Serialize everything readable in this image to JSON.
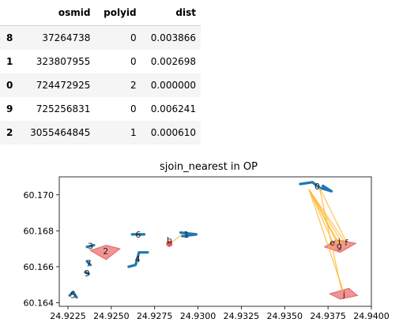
{
  "table": {
    "columns": [
      "osmid",
      "polyid",
      "dist"
    ],
    "rows": [
      {
        "index": "8",
        "osmid": "37264738",
        "polyid": "0",
        "dist": "0.003866"
      },
      {
        "index": "1",
        "osmid": "323807955",
        "polyid": "0",
        "dist": "0.002698"
      },
      {
        "index": "0",
        "osmid": "724472925",
        "polyid": "2",
        "dist": "0.000000"
      },
      {
        "index": "9",
        "osmid": "725256831",
        "polyid": "0",
        "dist": "0.006241"
      },
      {
        "index": "2",
        "osmid": "3055464845",
        "polyid": "1",
        "dist": "0.000610"
      }
    ]
  },
  "chart_data": {
    "type": "scatter",
    "title": "sjoin_nearest in OP",
    "xlim": [
      24.922,
      24.94
    ],
    "ylim": [
      60.1638,
      60.171
    ],
    "x_ticks": [
      "24.9225",
      "24.9250",
      "24.9275",
      "24.9300",
      "24.9325",
      "24.9350",
      "24.9375",
      "24.9400"
    ],
    "y_ticks": [
      "60.164",
      "60.166",
      "60.168",
      "60.170"
    ],
    "colors": {
      "line_features": "#1f77b4",
      "polygons": "#f08080",
      "polygon_edge": "#e06666",
      "point": "#d62728",
      "connector": "#ffb733"
    },
    "blue_lines": [
      {
        "label": "0",
        "coords": [
          [
            24.9359,
            60.1706
          ],
          [
            24.9366,
            60.1707
          ],
          [
            24.937,
            60.1704
          ],
          [
            24.9377,
            60.1702
          ],
          [
            24.9372,
            60.1705
          ]
        ]
      },
      {
        "label": "1",
        "coords": [
          [
            24.929,
            60.1679
          ],
          [
            24.9299,
            60.1678
          ],
          [
            24.9291,
            60.1677
          ]
        ]
      },
      {
        "label": "6",
        "coords": [
          [
            24.9262,
            60.1678
          ],
          [
            24.9269,
            60.1678
          ]
        ]
      },
      {
        "label": "4",
        "coords": [
          [
            24.926,
            60.166
          ],
          [
            24.9264,
            60.1661
          ],
          [
            24.9266,
            60.1668
          ],
          [
            24.9271,
            60.1668
          ]
        ]
      },
      {
        "label": "5",
        "coords": [
          [
            24.9226,
            60.1644
          ],
          [
            24.9228,
            60.1646
          ],
          [
            24.923,
            60.1643
          ]
        ]
      },
      {
        "label": "3",
        "coords": [
          [
            24.9236,
            60.1671
          ],
          [
            24.924,
            60.1672
          ]
        ]
      },
      {
        "label": "7",
        "coords": [
          [
            24.9236,
            60.1663
          ],
          [
            24.9238,
            60.1661
          ]
        ]
      },
      {
        "label": "9",
        "coords": [
          [
            24.9235,
            60.1657
          ],
          [
            24.9237,
            60.1656
          ]
        ]
      }
    ],
    "polygons": [
      {
        "label": "2",
        "coords": [
          [
            24.9238,
            60.1669
          ],
          [
            24.9247,
            60.1672
          ],
          [
            24.9255,
            60.167
          ],
          [
            24.9247,
            60.1664
          ]
        ]
      },
      {
        "label": "g",
        "coords": [
          [
            24.9373,
            60.1671
          ],
          [
            24.938,
            60.1675
          ],
          [
            24.9391,
            60.1673
          ],
          [
            24.9382,
            60.1668
          ]
        ]
      },
      {
        "label": "j",
        "coords": [
          [
            24.9376,
            60.1645
          ],
          [
            24.9387,
            60.1648
          ],
          [
            24.9392,
            60.1644
          ],
          [
            24.9382,
            60.1642
          ]
        ]
      }
    ],
    "point": {
      "label": "b",
      "x": 24.92835,
      "y": 60.16728
    },
    "point_labels": [
      {
        "text": "e",
        "x": 24.93775,
        "y": 60.16735
      },
      {
        "text": "i",
        "x": 24.93815,
        "y": 60.1674
      },
      {
        "text": "f",
        "x": 24.93855,
        "y": 60.16735
      }
    ],
    "connectors": [
      {
        "from": [
          24.9364,
          60.1703
        ],
        "to": [
          24.9381,
          60.1672
        ]
      },
      {
        "from": [
          24.9364,
          60.1703
        ],
        "to": [
          24.9384,
          60.1672
        ]
      },
      {
        "from": [
          24.9364,
          60.1703
        ],
        "to": [
          24.9386,
          60.1672
        ]
      },
      {
        "from": [
          24.9364,
          60.1703
        ],
        "to": [
          24.9379,
          60.1671
        ]
      },
      {
        "from": [
          24.9364,
          60.1703
        ],
        "to": [
          24.9383,
          60.167
        ]
      },
      {
        "from": [
          24.9364,
          60.1703
        ],
        "to": [
          24.9384,
          60.1646
        ]
      },
      {
        "from": [
          24.937,
          60.1704
        ],
        "to": [
          24.9386,
          60.1673
        ]
      },
      {
        "from": [
          24.937,
          60.1704
        ],
        "to": [
          24.9383,
          60.1646
        ]
      },
      {
        "from": [
          24.9291,
          60.1678
        ],
        "to": [
          24.92835,
          60.16728
        ]
      }
    ]
  }
}
